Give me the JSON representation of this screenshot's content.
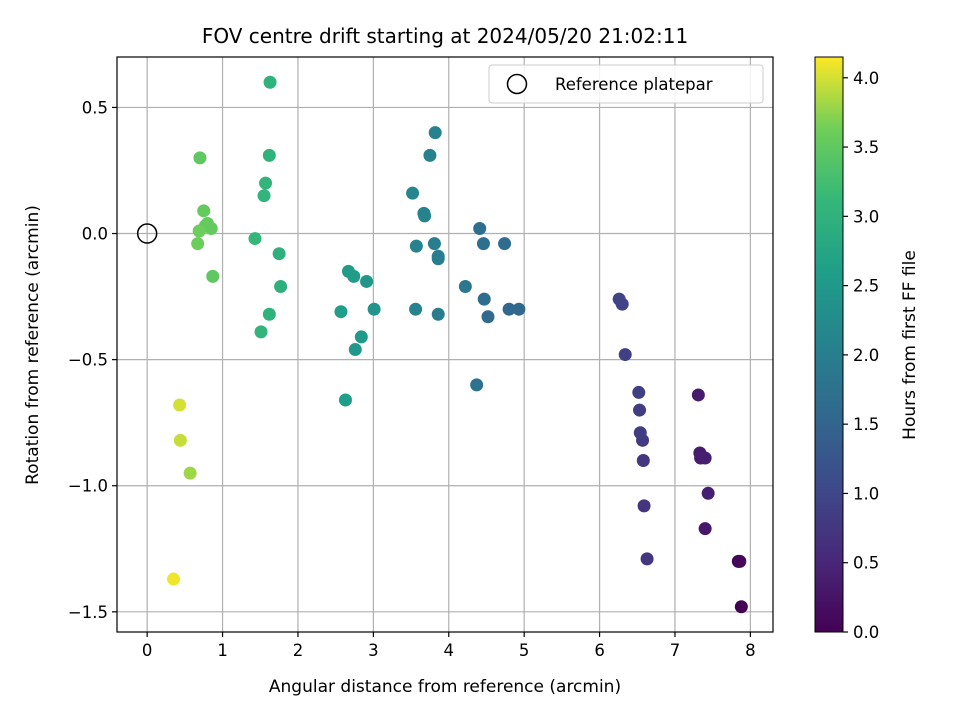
{
  "chart_data": {
    "type": "scatter",
    "title": "FOV centre drift starting at 2024/05/20 21:02:11",
    "xlabel": "Angular distance from reference (arcmin)",
    "ylabel": "Rotation from reference (arcmin)",
    "xlim": [
      -0.4,
      8.3
    ],
    "ylim": [
      -1.58,
      0.7
    ],
    "x_ticks": [
      0,
      1,
      2,
      3,
      4,
      5,
      6,
      7,
      8
    ],
    "y_ticks": [
      0.5,
      0.0,
      -0.5,
      -1.0,
      -1.5
    ],
    "x_tick_labels": [
      "0",
      "1",
      "2",
      "3",
      "4",
      "5",
      "6",
      "7",
      "8"
    ],
    "y_tick_labels": [
      "0.5",
      "0.0",
      "−0.5",
      "−1.0",
      "−1.5"
    ],
    "grid": true,
    "legend": {
      "placement": "top-right",
      "entries": [
        "Reference platepar"
      ]
    },
    "reference_point": {
      "x": 0.0,
      "y": 0.0
    },
    "colorbar": {
      "label": "Hours from first FF file",
      "range": [
        0.0,
        4.15
      ],
      "ticks": [
        0.0,
        0.5,
        1.0,
        1.5,
        2.0,
        2.5,
        3.0,
        3.5,
        4.0
      ],
      "tick_labels": [
        "0.0",
        "0.5",
        "1.0",
        "1.5",
        "2.0",
        "2.5",
        "3.0",
        "3.5",
        "4.0"
      ],
      "colormap": "viridis"
    },
    "points": [
      {
        "x": 7.88,
        "y": -1.48,
        "c": 0.0
      },
      {
        "x": 7.84,
        "y": -1.3,
        "c": 0.05
      },
      {
        "x": 7.86,
        "y": -1.3,
        "c": 0.08
      },
      {
        "x": 7.4,
        "y": -1.17,
        "c": 0.3
      },
      {
        "x": 7.44,
        "y": -1.03,
        "c": 0.4
      },
      {
        "x": 7.33,
        "y": -0.87,
        "c": 0.35
      },
      {
        "x": 7.34,
        "y": -0.89,
        "c": 0.38
      },
      {
        "x": 7.4,
        "y": -0.89,
        "c": 0.4
      },
      {
        "x": 7.31,
        "y": -0.64,
        "c": 0.35
      },
      {
        "x": 6.63,
        "y": -1.29,
        "c": 0.75
      },
      {
        "x": 6.59,
        "y": -1.08,
        "c": 0.7
      },
      {
        "x": 6.58,
        "y": -0.9,
        "c": 0.75
      },
      {
        "x": 6.57,
        "y": -0.82,
        "c": 0.8
      },
      {
        "x": 6.54,
        "y": -0.79,
        "c": 0.85
      },
      {
        "x": 6.53,
        "y": -0.7,
        "c": 0.85
      },
      {
        "x": 6.52,
        "y": -0.63,
        "c": 0.88
      },
      {
        "x": 6.34,
        "y": -0.48,
        "c": 0.9
      },
      {
        "x": 6.3,
        "y": -0.28,
        "c": 0.95
      },
      {
        "x": 6.26,
        "y": -0.26,
        "c": 0.95
      },
      {
        "x": 4.93,
        "y": -0.3,
        "c": 1.55
      },
      {
        "x": 4.8,
        "y": -0.3,
        "c": 1.55
      },
      {
        "x": 4.74,
        "y": -0.04,
        "c": 1.65
      },
      {
        "x": 4.52,
        "y": -0.33,
        "c": 1.6
      },
      {
        "x": 4.47,
        "y": -0.26,
        "c": 1.65
      },
      {
        "x": 4.46,
        "y": -0.04,
        "c": 1.7
      },
      {
        "x": 4.41,
        "y": 0.02,
        "c": 1.7
      },
      {
        "x": 4.37,
        "y": -0.6,
        "c": 1.75
      },
      {
        "x": 4.22,
        "y": -0.21,
        "c": 1.85
      },
      {
        "x": 3.86,
        "y": -0.32,
        "c": 1.95
      },
      {
        "x": 3.86,
        "y": -0.1,
        "c": 2.0
      },
      {
        "x": 3.86,
        "y": -0.09,
        "c": 2.0
      },
      {
        "x": 3.81,
        "y": -0.04,
        "c": 2.0
      },
      {
        "x": 3.82,
        "y": 0.4,
        "c": 2.05
      },
      {
        "x": 3.75,
        "y": 0.31,
        "c": 2.05
      },
      {
        "x": 3.68,
        "y": 0.07,
        "c": 2.1
      },
      {
        "x": 3.67,
        "y": 0.08,
        "c": 2.1
      },
      {
        "x": 3.57,
        "y": -0.05,
        "c": 2.1
      },
      {
        "x": 3.56,
        "y": -0.3,
        "c": 2.1
      },
      {
        "x": 3.52,
        "y": 0.16,
        "c": 2.15
      },
      {
        "x": 3.01,
        "y": -0.3,
        "c": 2.4
      },
      {
        "x": 2.91,
        "y": -0.19,
        "c": 2.45
      },
      {
        "x": 2.84,
        "y": -0.41,
        "c": 2.5
      },
      {
        "x": 2.76,
        "y": -0.46,
        "c": 2.5
      },
      {
        "x": 2.74,
        "y": -0.17,
        "c": 2.55
      },
      {
        "x": 2.67,
        "y": -0.15,
        "c": 2.55
      },
      {
        "x": 2.63,
        "y": -0.66,
        "c": 2.6
      },
      {
        "x": 2.57,
        "y": -0.31,
        "c": 2.6
      },
      {
        "x": 1.77,
        "y": -0.21,
        "c": 2.95
      },
      {
        "x": 1.75,
        "y": -0.08,
        "c": 2.95
      },
      {
        "x": 1.63,
        "y": 0.6,
        "c": 3.0
      },
      {
        "x": 1.62,
        "y": 0.31,
        "c": 3.0
      },
      {
        "x": 1.62,
        "y": -0.32,
        "c": 3.0
      },
      {
        "x": 1.57,
        "y": 0.2,
        "c": 3.05
      },
      {
        "x": 1.55,
        "y": 0.15,
        "c": 3.05
      },
      {
        "x": 1.51,
        "y": -0.39,
        "c": 3.05
      },
      {
        "x": 1.43,
        "y": -0.02,
        "c": 3.1
      },
      {
        "x": 0.87,
        "y": -0.17,
        "c": 3.5
      },
      {
        "x": 0.85,
        "y": 0.02,
        "c": 3.55
      },
      {
        "x": 0.8,
        "y": 0.04,
        "c": 3.55
      },
      {
        "x": 0.77,
        "y": 0.03,
        "c": 3.55
      },
      {
        "x": 0.75,
        "y": 0.09,
        "c": 3.55
      },
      {
        "x": 0.7,
        "y": 0.3,
        "c": 3.5
      },
      {
        "x": 0.69,
        "y": 0.01,
        "c": 3.6
      },
      {
        "x": 0.67,
        "y": -0.04,
        "c": 3.6
      },
      {
        "x": 0.57,
        "y": -0.95,
        "c": 3.8
      },
      {
        "x": 0.44,
        "y": -0.82,
        "c": 3.95
      },
      {
        "x": 0.43,
        "y": -0.68,
        "c": 4.0
      },
      {
        "x": 0.35,
        "y": -1.37,
        "c": 4.1
      }
    ]
  }
}
